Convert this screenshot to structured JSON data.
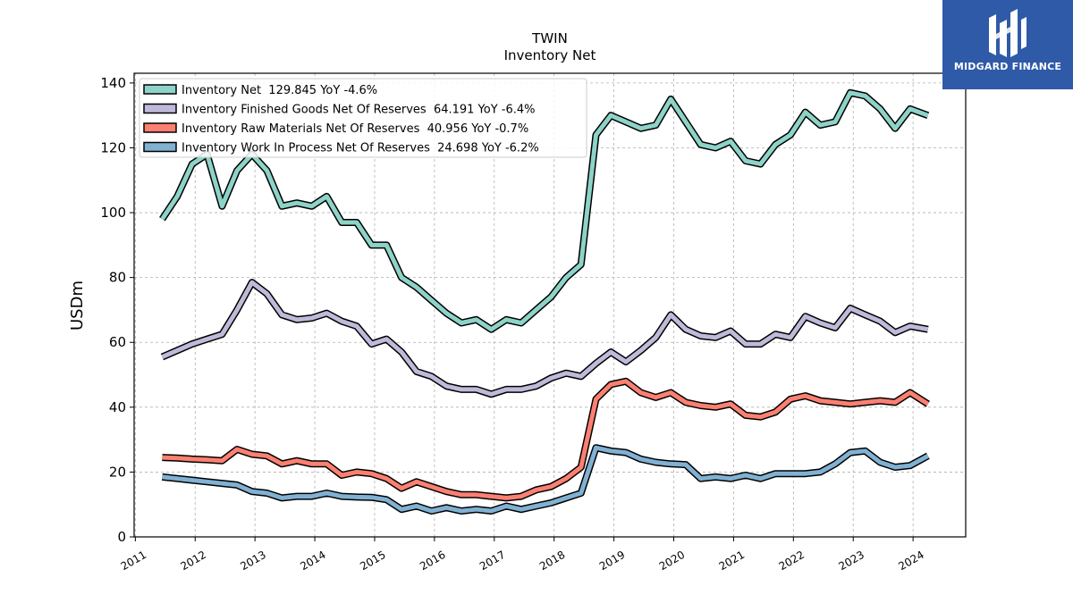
{
  "brand": {
    "name": "MIDGARD FINANCE",
    "bg_color": "#2f5aa8",
    "icon": "midgard-logo-icon"
  },
  "chart_data": {
    "type": "line",
    "title": "TWIN",
    "subtitle": "Inventory Net",
    "xlabel": "",
    "ylabel": "USDm",
    "xlim": [
      2010.98,
      2024.88
    ],
    "ylim": [
      0,
      143
    ],
    "grid": true,
    "legend_position": "top-left",
    "x_ticks": [
      "2011",
      "2012",
      "2013",
      "2014",
      "2015",
      "2016",
      "2017",
      "2018",
      "2019",
      "2020",
      "2021",
      "2022",
      "2023",
      "2024"
    ],
    "y_ticks": [
      "0",
      "20",
      "40",
      "60",
      "80",
      "100",
      "120",
      "140"
    ],
    "x": [
      2011.45,
      2011.7,
      2011.95,
      2012.2,
      2012.45,
      2012.7,
      2012.95,
      2013.2,
      2013.45,
      2013.7,
      2013.95,
      2014.2,
      2014.45,
      2014.7,
      2014.95,
      2015.2,
      2015.45,
      2015.7,
      2015.95,
      2016.2,
      2016.45,
      2016.7,
      2016.95,
      2017.2,
      2017.45,
      2017.7,
      2017.95,
      2018.2,
      2018.45,
      2018.7,
      2018.95,
      2019.2,
      2019.45,
      2019.7,
      2019.95,
      2020.2,
      2020.45,
      2020.7,
      2020.95,
      2021.2,
      2021.45,
      2021.7,
      2021.95,
      2022.2,
      2022.45,
      2022.7,
      2022.95,
      2023.2,
      2023.45,
      2023.7,
      2023.95,
      2024.25
    ],
    "series": [
      {
        "name": "Inventory Net  129.845 YoY -4.6%",
        "color": "#8dd3c7",
        "values": [
          98,
          105,
          115,
          118,
          102,
          113,
          118,
          113,
          102,
          103,
          102,
          105,
          97,
          97,
          90,
          90,
          80,
          77,
          73,
          69,
          66,
          67,
          64,
          67,
          66,
          70,
          74,
          80,
          84,
          124,
          130,
          128,
          126,
          127,
          135,
          128,
          121,
          120,
          122,
          116,
          115,
          121,
          124,
          131,
          127,
          128,
          137,
          136,
          132,
          126,
          132,
          130
        ]
      },
      {
        "name": "Inventory Finished Goods Net Of Reserves  64.191 YoY -6.4%",
        "color": "#bebada",
        "values": [
          55.5,
          57.5,
          59.5,
          61,
          62.5,
          70,
          78.5,
          75,
          68.5,
          67,
          67.5,
          69,
          66.5,
          65,
          59.5,
          61,
          57,
          51,
          49.5,
          46.5,
          45.5,
          45.5,
          44,
          45.5,
          45.5,
          46.5,
          49,
          50.5,
          49.5,
          53.5,
          57,
          54,
          57.5,
          61.5,
          68.5,
          64,
          62,
          61.5,
          63.5,
          59.5,
          59.5,
          62.5,
          61.5,
          68,
          66,
          64.5,
          70.5,
          68.5,
          66.5,
          63,
          65,
          64
        ]
      },
      {
        "name": "Inventory Raw Materials Net Of Reserves  40.956 YoY -0.7%",
        "color": "#fb8072",
        "values": [
          24.5,
          24.3,
          24,
          23.8,
          23.5,
          27,
          25.5,
          25,
          22.5,
          23.5,
          22.5,
          22.5,
          19,
          20,
          19.5,
          18,
          15,
          17,
          15.5,
          14,
          13,
          13,
          12.5,
          12,
          12.5,
          14.5,
          15.5,
          18,
          21.5,
          42.5,
          47,
          48,
          44.5,
          43,
          44.5,
          41.5,
          40.5,
          40,
          41,
          37.5,
          37,
          38.5,
          42.5,
          43.5,
          42,
          41.5,
          41,
          41.5,
          42,
          41.5,
          44.5,
          41
        ]
      },
      {
        "name": "Inventory Work In Process Net Of Reserves  24.698 YoY -6.2%",
        "color": "#80b1d3",
        "values": [
          18.5,
          18,
          17.5,
          17,
          16.5,
          16,
          14,
          13.5,
          12,
          12.5,
          12.5,
          13.5,
          12.5,
          12.3,
          12.2,
          11.5,
          8.5,
          9.5,
          8,
          9,
          8,
          8.5,
          8,
          9.5,
          8.5,
          9.5,
          10.5,
          12,
          13.5,
          27.5,
          26.5,
          26,
          24,
          23,
          22.5,
          22.3,
          18,
          18.5,
          18,
          19,
          18,
          19.5,
          19.5,
          19.5,
          20,
          22.5,
          26,
          26.5,
          23,
          21.5,
          22,
          25
        ]
      }
    ]
  }
}
